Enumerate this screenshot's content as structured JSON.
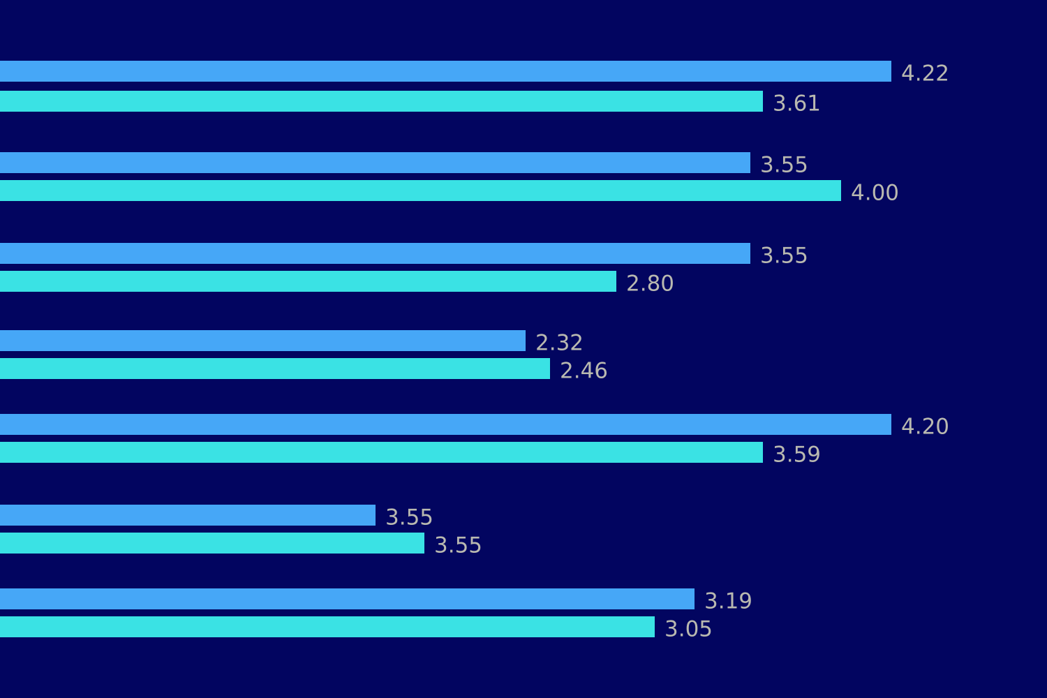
{
  "colors": {
    "background": "#020560",
    "series_a": "#46a7f7",
    "series_b": "#3ae2e4",
    "label": "#b9b9b0"
  },
  "chart_data": {
    "type": "bar",
    "orientation": "horizontal",
    "title": "",
    "xlabel": "",
    "ylabel": "",
    "grid": false,
    "groups": [
      {
        "a": {
          "value": 4.22,
          "label": "4.22",
          "bar_end": 1277
        },
        "b": {
          "value": 3.61,
          "label": "3.61",
          "bar_end": 1093
        }
      },
      {
        "a": {
          "value": 3.55,
          "label": "3.55",
          "bar_end": 1075
        },
        "b": {
          "value": 4.0,
          "label": "4.00",
          "bar_end": 1205
        }
      },
      {
        "a": {
          "value": 3.55,
          "label": "3.55",
          "bar_end": 1075
        },
        "b": {
          "value": 2.8,
          "label": "2.80",
          "bar_end": 883
        }
      },
      {
        "a": {
          "value": 2.32,
          "label": "2.32",
          "bar_end": 753
        },
        "b": {
          "value": 2.46,
          "label": "2.46",
          "bar_end": 788
        }
      },
      {
        "a": {
          "value": 4.2,
          "label": "4.20",
          "bar_end": 1277
        },
        "b": {
          "value": 3.59,
          "label": "3.59",
          "bar_end": 1093
        }
      },
      {
        "a": {
          "value": 3.55,
          "label": "3.55",
          "bar_end": 538
        },
        "b": {
          "value": 3.55,
          "label": "3.55",
          "bar_end": 608
        }
      },
      {
        "a": {
          "value": 3.19,
          "label": "3.19",
          "bar_end": 995
        },
        "b": {
          "value": 3.05,
          "label": "3.05",
          "bar_end": 938
        }
      }
    ]
  }
}
